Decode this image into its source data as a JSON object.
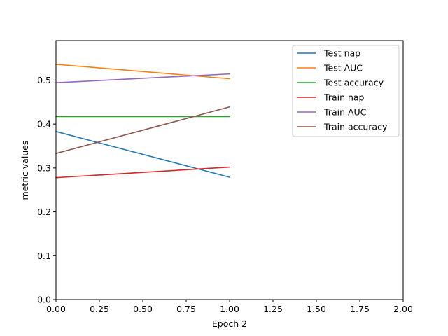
{
  "chart_data": {
    "type": "line",
    "title": "",
    "xlabel": "Epoch 2",
    "ylabel": "metric values",
    "xlim": [
      0,
      2
    ],
    "ylim": [
      0,
      0.59
    ],
    "xticks": [
      0,
      0.25,
      0.5,
      0.75,
      1.0,
      1.25,
      1.5,
      1.75,
      2.0
    ],
    "xtick_labels": [
      "0.00",
      "0.25",
      "0.50",
      "0.75",
      "1.00",
      "1.25",
      "1.50",
      "1.75",
      "2.00"
    ],
    "yticks": [
      0,
      0.1,
      0.2,
      0.3,
      0.4,
      0.5
    ],
    "ytick_labels": [
      "0.0",
      "0.1",
      "0.2",
      "0.3",
      "0.4",
      "0.5"
    ],
    "grid": false,
    "legend_position": "top-right",
    "x": [
      0,
      1
    ],
    "series": [
      {
        "name": "Test nap",
        "color": "#1f77b4",
        "values": [
          0.383,
          0.279
        ]
      },
      {
        "name": "Test AUC",
        "color": "#ff7f0e",
        "values": [
          0.536,
          0.503
        ]
      },
      {
        "name": "Test accuracy",
        "color": "#2ca02c",
        "values": [
          0.417,
          0.417
        ]
      },
      {
        "name": "Train nap",
        "color": "#d62728",
        "values": [
          0.278,
          0.302
        ]
      },
      {
        "name": "Train AUC",
        "color": "#9467bd",
        "values": [
          0.494,
          0.514
        ]
      },
      {
        "name": "Train accuracy",
        "color": "#8c564b",
        "values": [
          0.333,
          0.439
        ]
      }
    ]
  }
}
